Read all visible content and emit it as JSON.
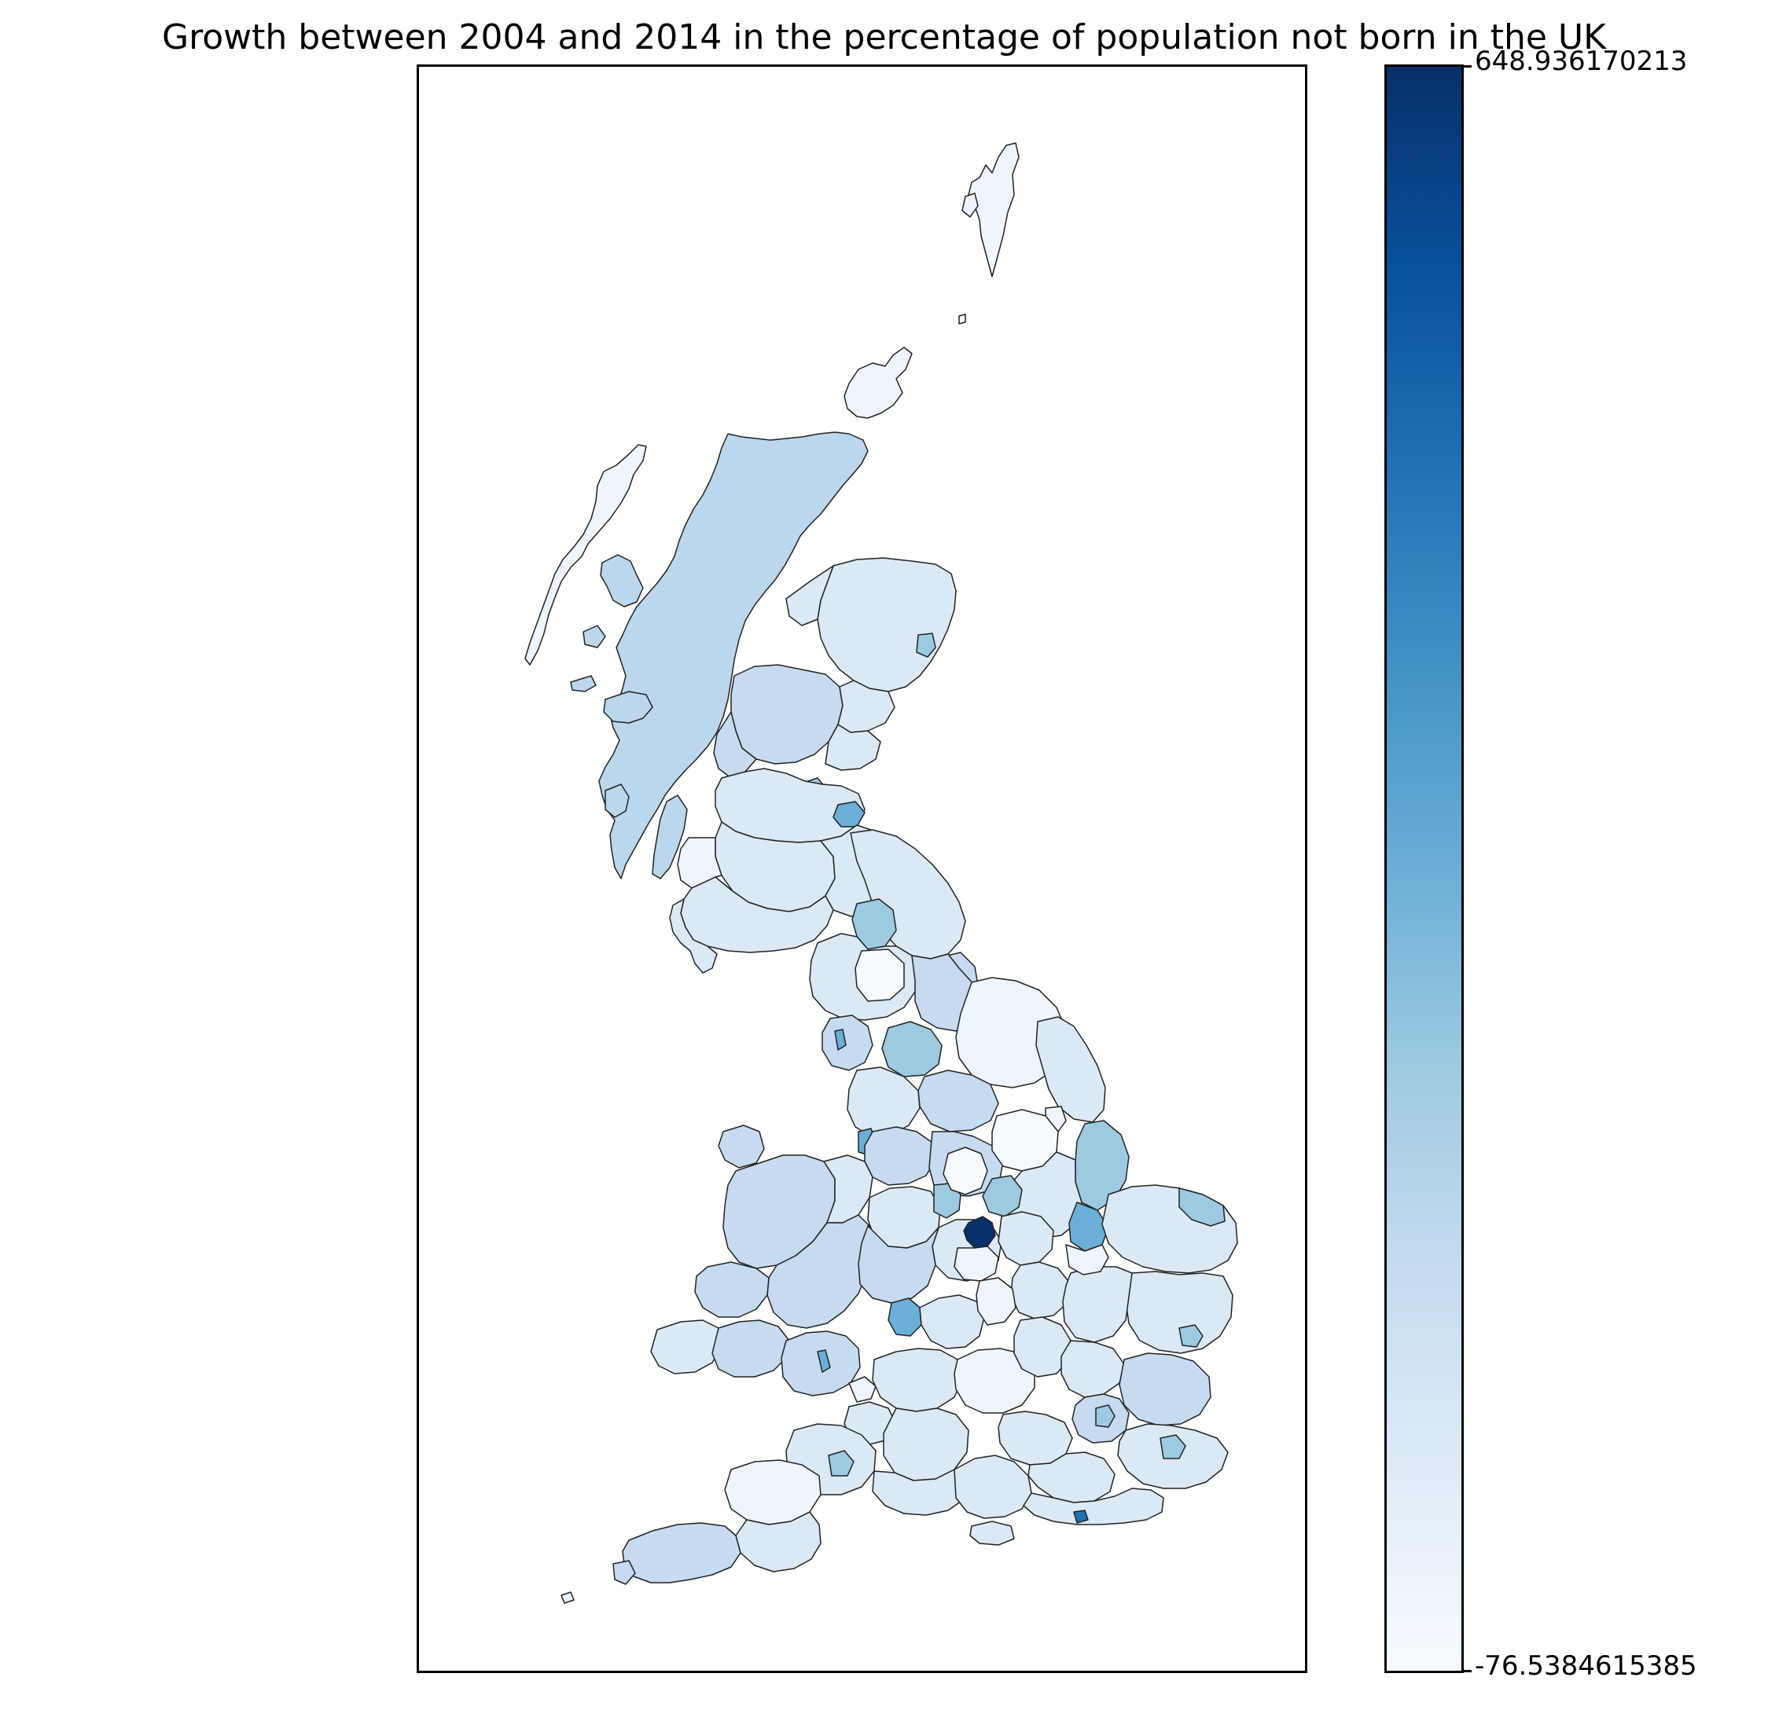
{
  "title": "Growth between 2004 and 2014 in the percentage of population not born in the UK",
  "colorbar": {
    "max_label": "648.936170213",
    "min_label": "-76.5384615385",
    "max": 648.936170213,
    "min": -76.5384615385,
    "colormap": "Blues",
    "colors": [
      "#f7fbff",
      "#deebf7",
      "#c6dbef",
      "#9ecae1",
      "#6baed6",
      "#4292c6",
      "#2171b5",
      "#08519c",
      "#08306b"
    ]
  },
  "map": {
    "colors": {
      "background": "#ffffff",
      "border": "#000000",
      "scotland_highland": "#bcd7ec",
      "light": "#dbe9f6",
      "very_light": "#eef5fc",
      "mid": "#c6dbef",
      "accent_mid": "#9ecae1",
      "accent_strong": "#6baed6",
      "darkest": "#08306b"
    }
  }
}
